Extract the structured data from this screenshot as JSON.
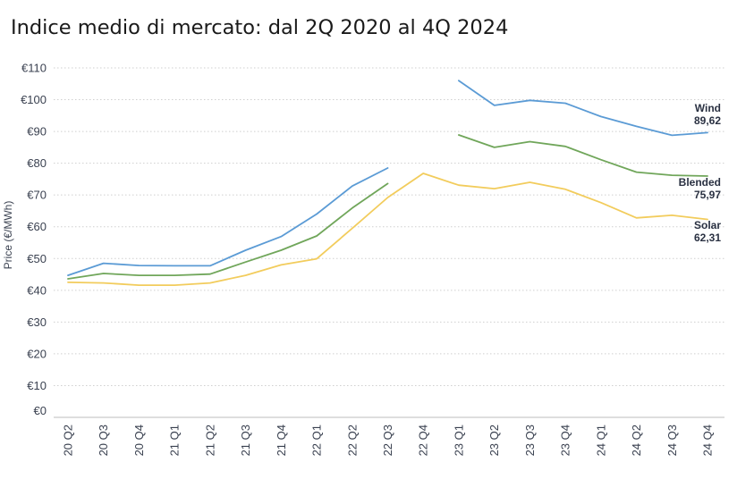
{
  "chart_data": {
    "type": "line",
    "title": "Indice medio di mercato: dal 2Q 2020 al 4Q 2024",
    "ylabel": "Price (€/MWh)",
    "xlabel": "",
    "ylim": [
      0,
      110
    ],
    "yticks": [
      {
        "value": 0,
        "label": "€0"
      },
      {
        "value": 10,
        "label": "€10"
      },
      {
        "value": 20,
        "label": "€20"
      },
      {
        "value": 30,
        "label": "€30"
      },
      {
        "value": 40,
        "label": "€40"
      },
      {
        "value": 50,
        "label": "€50"
      },
      {
        "value": 60,
        "label": "€60"
      },
      {
        "value": 70,
        "label": "€70"
      },
      {
        "value": 80,
        "label": "€80"
      },
      {
        "value": 90,
        "label": "€90"
      },
      {
        "value": 100,
        "label": "€100"
      },
      {
        "value": 110,
        "label": "€110"
      }
    ],
    "categories": [
      "20 Q2",
      "20 Q3",
      "20 Q4",
      "21 Q1",
      "21 Q2",
      "21 Q3",
      "21 Q4",
      "22 Q1",
      "22 Q2",
      "22 Q3",
      "22 Q4",
      "23 Q1",
      "23 Q2",
      "23 Q3",
      "23 Q4",
      "24 Q1",
      "24 Q2",
      "24 Q3",
      "24 Q4"
    ],
    "grid": true,
    "series": [
      {
        "name": "Wind",
        "color": "#5b9bd5",
        "end_label": "89,62",
        "values": [
          44.7,
          48.5,
          47.8,
          47.7,
          47.7,
          52.6,
          56.9,
          64.0,
          72.8,
          78.5,
          null,
          106.0,
          98.2,
          99.8,
          98.9,
          94.7,
          91.6,
          88.8,
          89.62
        ]
      },
      {
        "name": "Blended",
        "color": "#70a65a",
        "end_label": "75,97",
        "values": [
          43.6,
          45.3,
          44.7,
          44.7,
          45.1,
          48.9,
          52.6,
          57.1,
          65.9,
          73.6,
          null,
          88.9,
          85.0,
          86.8,
          85.3,
          81.1,
          77.2,
          76.2,
          75.97
        ]
      },
      {
        "name": "Solar",
        "color": "#f2cc5c",
        "end_label": "62,31",
        "values": [
          42.5,
          42.3,
          41.6,
          41.6,
          42.3,
          44.7,
          48.0,
          49.9,
          59.5,
          69.2,
          76.8,
          73.1,
          72.0,
          74.0,
          71.8,
          67.6,
          62.8,
          63.6,
          62.31
        ]
      }
    ]
  }
}
